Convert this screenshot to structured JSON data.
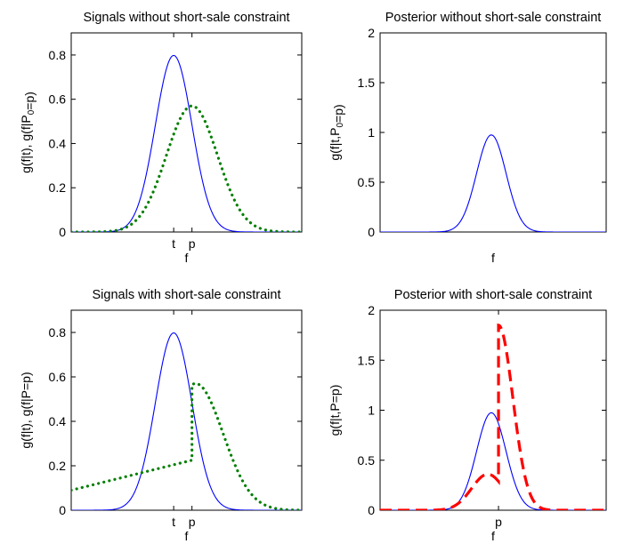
{
  "chart_data": [
    {
      "type": "line",
      "title": "Signals without short-sale constraint",
      "xlabel": "f",
      "ylabel": "g(f|t), g(f|P₀=p)",
      "x_tick_labels": [
        {
          "x": 0,
          "label": "t"
        },
        {
          "x": 0.5,
          "label": "p"
        }
      ],
      "xlim": [
        -2.8,
        3.5
      ],
      "ylim": [
        0,
        0.9
      ],
      "y_ticks": [
        0,
        0.2,
        0.4,
        0.6,
        0.8
      ],
      "series": [
        {
          "color": "#0000ff",
          "style": "solid",
          "kind": "normal",
          "mean": 0,
          "sd": 0.5,
          "peak": 0.798
        },
        {
          "color": "#007f00",
          "style": "dotted",
          "kind": "normal",
          "mean": 0.5,
          "sd": 0.7,
          "peak": 0.57
        }
      ]
    },
    {
      "type": "line",
      "title": "Posterior without short-sale constraint",
      "xlabel": "f",
      "ylabel": "g(f|t,P₀=p)",
      "x_tick_labels": [],
      "xlim": [
        -2.8,
        3.5
      ],
      "ylim": [
        0,
        2
      ],
      "y_ticks": [
        0,
        0.5,
        1,
        1.5,
        2
      ],
      "series": [
        {
          "color": "#0000ff",
          "style": "solid",
          "kind": "normal",
          "mean": 0.3,
          "sd": 0.41,
          "peak": 0.975
        }
      ]
    },
    {
      "type": "line",
      "title": "Signals with short-sale constraint",
      "xlabel": "f",
      "ylabel": "g(f|t), g(f|P=p)",
      "x_tick_labels": [
        {
          "x": 0,
          "label": "t"
        },
        {
          "x": 0.5,
          "label": "p"
        }
      ],
      "xlim": [
        -2.8,
        3.5
      ],
      "ylim": [
        0,
        0.9
      ],
      "y_ticks": [
        0,
        0.2,
        0.4,
        0.6,
        0.8
      ],
      "series": [
        {
          "color": "#0000ff",
          "style": "solid",
          "kind": "normal",
          "mean": 0,
          "sd": 0.5,
          "peak": 0.798
        },
        {
          "color": "#007f00",
          "style": "dotted",
          "kind": "piecewise",
          "left": {
            "x0": -2.8,
            "y0": 0.09,
            "x1": 0.5,
            "y1": 0.225
          },
          "right": {
            "mean": 0.6,
            "sd": 0.75,
            "peak": 0.57
          }
        }
      ]
    },
    {
      "type": "line",
      "title": "Posterior with short-sale constraint",
      "xlabel": "f",
      "ylabel": "g(f|t,P=p)",
      "x_tick_labels": [
        {
          "x": 0.5,
          "label": "p"
        }
      ],
      "xlim": [
        -2.8,
        3.5
      ],
      "ylim": [
        0,
        2
      ],
      "y_ticks": [
        0,
        0.5,
        1,
        1.5,
        2
      ],
      "series": [
        {
          "color": "#0000ff",
          "style": "solid",
          "kind": "normal",
          "mean": 0.3,
          "sd": 0.41,
          "peak": 0.975
        },
        {
          "color": "#ff0000",
          "style": "dashed",
          "kind": "piecewise",
          "left": {
            "mean": 0.2,
            "sd": 0.45,
            "peak": 0.36
          },
          "right": {
            "mean": 0.5,
            "sd": 0.4,
            "peak": 1.85
          }
        }
      ]
    }
  ]
}
